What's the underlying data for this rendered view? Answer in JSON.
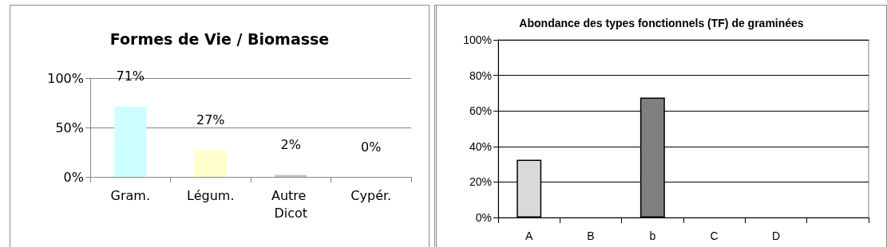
{
  "chart_data": [
    {
      "type": "bar",
      "title": "Formes de Vie / Biomasse",
      "categories": [
        "Gram.",
        "Légum.",
        "Autre Dicot",
        "Cypér."
      ],
      "values": [
        71,
        27,
        2,
        0
      ],
      "colors": [
        "#ccffff",
        "#ffffcc",
        "#ccc0da",
        "#d9d9d9"
      ],
      "value_labels": [
        "71%",
        "27%",
        "2%",
        "0%"
      ],
      "ylim": [
        0,
        100
      ],
      "yticks": [
        {
          "value": 0,
          "label": "0%"
        },
        {
          "value": 50,
          "label": "50%"
        },
        {
          "value": 100,
          "label": "100%"
        }
      ],
      "grid": "y"
    },
    {
      "type": "bar",
      "title": "Abondance des types fonctionnels (TF) de graminées",
      "categories": [
        "A",
        "B",
        "b",
        "C",
        "D",
        null
      ],
      "values": [
        32.5,
        0,
        67.5,
        0,
        0,
        0
      ],
      "colors": [
        "#d9d9d9",
        "#d9d9d9",
        "#808080",
        "#d9d9d9",
        "#d9d9d9",
        "#d9d9d9"
      ],
      "ylim": [
        0,
        100
      ],
      "yticks": [
        {
          "value": 0,
          "label": "0%"
        },
        {
          "value": 20,
          "label": "20%"
        },
        {
          "value": 40,
          "label": "40%"
        },
        {
          "value": 60,
          "label": "60%"
        },
        {
          "value": 80,
          "label": "80%"
        },
        {
          "value": 100,
          "label": "100%"
        }
      ],
      "grid": "y"
    }
  ]
}
